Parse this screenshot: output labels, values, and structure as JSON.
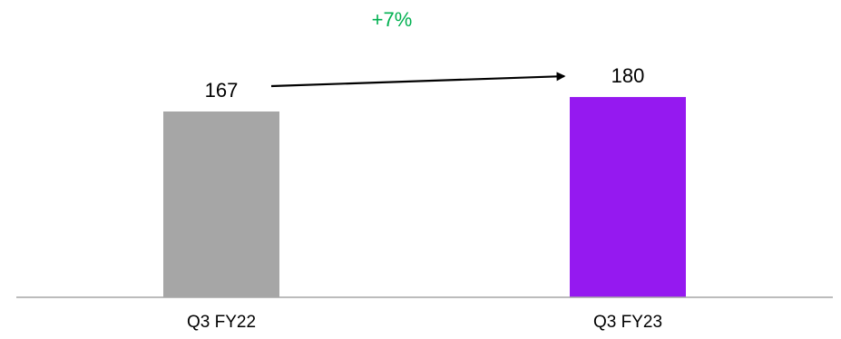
{
  "chart_data": {
    "type": "bar",
    "categories": [
      "Q3 FY22",
      "Q3 FY23"
    ],
    "values": [
      167,
      180
    ],
    "value_labels": [
      "167",
      "180"
    ],
    "colors": [
      "#A6A6A6",
      "#9519F0"
    ],
    "ylim": [
      0,
      200
    ],
    "grid": false,
    "legend": "none",
    "annotation": {
      "text": "+7%",
      "color": "#00B050",
      "from_index": 0,
      "to_index": 1,
      "type": "arrow"
    },
    "axis_color": "#A6A6A6",
    "label_color": "#000000"
  }
}
